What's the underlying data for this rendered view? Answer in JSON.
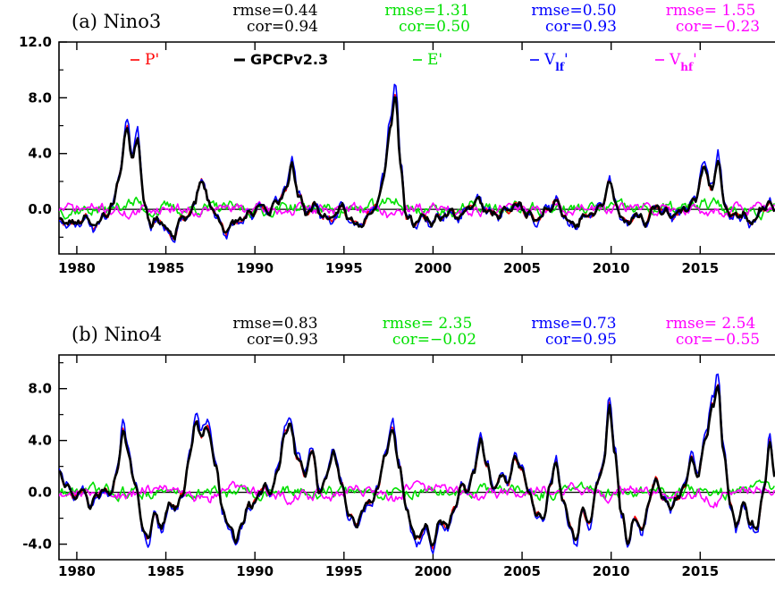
{
  "chart_data": [
    {
      "type": "line",
      "title": "(a) Nino3",
      "xlabel": "",
      "ylabel": "",
      "xlim": [
        1979,
        2019.2
      ],
      "ylim": [
        -3.2,
        12.0
      ],
      "x_ticks": [
        "1980",
        "1985",
        "1990",
        "1995",
        "2000",
        "2005",
        "2010",
        "2015"
      ],
      "y_ticks": [
        "12.0",
        "8.0",
        "4.0",
        "0.0"
      ],
      "stats": [
        {
          "series": "GPCPv2.3",
          "color": "#000000",
          "rmse": "rmse=0.44",
          "cor": "cor=0.94"
        },
        {
          "series": "E'",
          "color": "#00e000",
          "rmse": "rmse=1.31",
          "cor": "cor=0.50"
        },
        {
          "series": "Vlf'",
          "color": "#0000ff",
          "rmse": "rmse=0.50",
          "cor": "cor=0.93"
        },
        {
          "series": "Vhf'",
          "color": "#ff00ff",
          "rmse": "rmse=   1.55",
          "cor": "cor=−0.23"
        }
      ],
      "legend": [
        {
          "name": "P'",
          "color": "#ff0000"
        },
        {
          "name": "GPCPv2.3",
          "color": "#000000"
        },
        {
          "name": "E'",
          "color": "#00e000"
        },
        {
          "name": "Vlf'",
          "color": "#0000ff"
        },
        {
          "name": "Vhf'",
          "color": "#ff00ff"
        }
      ],
      "anchors": [
        [
          1979.0,
          -0.8
        ],
        [
          1979.8,
          -1.0
        ],
        [
          1980.5,
          -0.6
        ],
        [
          1981.0,
          -1.2
        ],
        [
          1981.6,
          -0.4
        ],
        [
          1982.0,
          0.2
        ],
        [
          1982.4,
          2.5
        ],
        [
          1982.8,
          5.8
        ],
        [
          1983.1,
          3.8
        ],
        [
          1983.4,
          5.0
        ],
        [
          1983.8,
          0.5
        ],
        [
          1984.2,
          -1.2
        ],
        [
          1984.6,
          -0.6
        ],
        [
          1985.0,
          -1.4
        ],
        [
          1985.4,
          -2.0
        ],
        [
          1985.8,
          -0.8
        ],
        [
          1986.2,
          -0.5
        ],
        [
          1986.6,
          0.3
        ],
        [
          1987.0,
          2.2
        ],
        [
          1987.4,
          0.5
        ],
        [
          1987.8,
          -0.3
        ],
        [
          1988.3,
          -1.6
        ],
        [
          1988.8,
          -1.0
        ],
        [
          1989.3,
          -0.6
        ],
        [
          1989.8,
          -0.4
        ],
        [
          1990.3,
          0.3
        ],
        [
          1990.7,
          -0.2
        ],
        [
          1991.2,
          0.5
        ],
        [
          1991.8,
          1.5
        ],
        [
          1992.1,
          3.2
        ],
        [
          1992.5,
          0.8
        ],
        [
          1992.9,
          -0.3
        ],
        [
          1993.3,
          0.3
        ],
        [
          1993.8,
          -0.4
        ],
        [
          1994.3,
          -0.8
        ],
        [
          1994.8,
          0.2
        ],
        [
          1995.3,
          -0.6
        ],
        [
          1995.8,
          -1.2
        ],
        [
          1996.4,
          -0.4
        ],
        [
          1996.8,
          0.3
        ],
        [
          1997.2,
          2.0
        ],
        [
          1997.6,
          6.0
        ],
        [
          1997.9,
          8.0
        ],
        [
          1998.2,
          3.0
        ],
        [
          1998.5,
          -0.5
        ],
        [
          1998.9,
          -1.0
        ],
        [
          1999.4,
          -0.6
        ],
        [
          1999.9,
          -0.9
        ],
        [
          2000.5,
          -0.5
        ],
        [
          2001.0,
          -0.2
        ],
        [
          2001.5,
          -0.6
        ],
        [
          2002.0,
          0.2
        ],
        [
          2002.6,
          0.6
        ],
        [
          2003.1,
          -0.2
        ],
        [
          2003.6,
          -0.4
        ],
        [
          2004.2,
          0.0
        ],
        [
          2004.8,
          0.3
        ],
        [
          2005.3,
          -0.3
        ],
        [
          2005.8,
          -0.8
        ],
        [
          2006.4,
          0.0
        ],
        [
          2006.9,
          0.6
        ],
        [
          2007.4,
          -0.5
        ],
        [
          2007.9,
          -1.2
        ],
        [
          2008.4,
          -0.6
        ],
        [
          2009.0,
          -0.3
        ],
        [
          2009.5,
          0.3
        ],
        [
          2009.9,
          2.0
        ],
        [
          2010.3,
          0.2
        ],
        [
          2010.8,
          -1.0
        ],
        [
          2011.4,
          -0.4
        ],
        [
          2011.9,
          -0.9
        ],
        [
          2012.5,
          0.2
        ],
        [
          2013.0,
          -0.2
        ],
        [
          2013.6,
          -0.4
        ],
        [
          2014.2,
          0.1
        ],
        [
          2014.7,
          0.6
        ],
        [
          2015.2,
          3.0
        ],
        [
          2015.6,
          1.5
        ],
        [
          2016.0,
          3.4
        ],
        [
          2016.4,
          0.3
        ],
        [
          2016.8,
          -0.6
        ],
        [
          2017.3,
          -0.3
        ],
        [
          2017.8,
          -1.0
        ],
        [
          2018.4,
          -0.2
        ],
        [
          2018.9,
          0.5
        ],
        [
          2019.2,
          -0.4
        ]
      ]
    },
    {
      "type": "line",
      "title": "(b) Nino4",
      "xlabel": "",
      "ylabel": "",
      "xlim": [
        1979,
        2019.2
      ],
      "ylim": [
        -5.2,
        10.6
      ],
      "x_ticks": [
        "1980",
        "1985",
        "1990",
        "1995",
        "2000",
        "2005",
        "2010",
        "2015"
      ],
      "y_ticks": [
        "8.0",
        "4.0",
        "0.0",
        "-4.0"
      ],
      "stats": [
        {
          "series": "GPCPv2.3",
          "color": "#000000",
          "rmse": "rmse=0.83",
          "cor": "cor=0.93"
        },
        {
          "series": "E'",
          "color": "#00e000",
          "rmse": "rmse=   2.35",
          "cor": "cor=−0.02"
        },
        {
          "series": "Vlf'",
          "color": "#0000ff",
          "rmse": "rmse=0.73",
          "cor": "cor=0.95"
        },
        {
          "series": "Vhf'",
          "color": "#ff00ff",
          "rmse": "rmse=   2.54",
          "cor": "cor=−0.55"
        }
      ],
      "anchors": [
        [
          1979.0,
          1.6
        ],
        [
          1979.4,
          0.6
        ],
        [
          1979.8,
          -0.4
        ],
        [
          1980.3,
          0.2
        ],
        [
          1980.7,
          -0.9
        ],
        [
          1981.2,
          -0.3
        ],
        [
          1981.6,
          0.3
        ],
        [
          1981.9,
          -0.4
        ],
        [
          1982.3,
          2.0
        ],
        [
          1982.6,
          4.8
        ],
        [
          1982.9,
          3.0
        ],
        [
          1983.3,
          0.5
        ],
        [
          1983.7,
          -2.6
        ],
        [
          1984.0,
          -3.6
        ],
        [
          1984.4,
          -1.5
        ],
        [
          1984.8,
          -2.8
        ],
        [
          1985.2,
          -0.8
        ],
        [
          1985.6,
          -1.2
        ],
        [
          1985.9,
          -0.3
        ],
        [
          1986.3,
          2.5
        ],
        [
          1986.7,
          5.5
        ],
        [
          1987.0,
          4.4
        ],
        [
          1987.4,
          4.8
        ],
        [
          1987.8,
          2.0
        ],
        [
          1988.2,
          -1.5
        ],
        [
          1988.6,
          -2.7
        ],
        [
          1988.9,
          -3.7
        ],
        [
          1989.3,
          -2.3
        ],
        [
          1989.7,
          -1.0
        ],
        [
          1990.1,
          -0.5
        ],
        [
          1990.6,
          0.6
        ],
        [
          1990.9,
          -0.3
        ],
        [
          1991.3,
          2.0
        ],
        [
          1991.7,
          4.5
        ],
        [
          1992.0,
          5.2
        ],
        [
          1992.4,
          2.5
        ],
        [
          1992.8,
          1.5
        ],
        [
          1993.2,
          3.2
        ],
        [
          1993.6,
          0.2
        ],
        [
          1994.0,
          1.0
        ],
        [
          1994.4,
          3.2
        ],
        [
          1994.9,
          0.5
        ],
        [
          1995.3,
          -1.8
        ],
        [
          1995.7,
          -2.6
        ],
        [
          1996.1,
          -1.2
        ],
        [
          1996.5,
          -0.8
        ],
        [
          1996.9,
          0.3
        ],
        [
          1997.3,
          2.8
        ],
        [
          1997.7,
          4.8
        ],
        [
          1998.1,
          2.2
        ],
        [
          1998.5,
          -1.2
        ],
        [
          1998.8,
          -2.8
        ],
        [
          1999.2,
          -3.6
        ],
        [
          1999.6,
          -2.5
        ],
        [
          2000.0,
          -4.2
        ],
        [
          2000.4,
          -2.0
        ],
        [
          2000.8,
          -2.8
        ],
        [
          2001.2,
          -1.2
        ],
        [
          2001.6,
          0.5
        ],
        [
          2001.9,
          0.2
        ],
        [
          2002.3,
          1.5
        ],
        [
          2002.7,
          4.2
        ],
        [
          2003.0,
          2.0
        ],
        [
          2003.4,
          0.3
        ],
        [
          2003.8,
          1.2
        ],
        [
          2004.2,
          0.8
        ],
        [
          2004.6,
          2.5
        ],
        [
          2005.0,
          1.8
        ],
        [
          2005.4,
          -0.2
        ],
        [
          2005.8,
          -1.5
        ],
        [
          2006.2,
          -2.2
        ],
        [
          2006.6,
          0.8
        ],
        [
          2006.9,
          2.2
        ],
        [
          2007.3,
          -0.5
        ],
        [
          2007.7,
          -2.6
        ],
        [
          2008.0,
          -3.6
        ],
        [
          2008.4,
          -1.5
        ],
        [
          2008.8,
          -2.4
        ],
        [
          2009.2,
          0.5
        ],
        [
          2009.6,
          2.5
        ],
        [
          2009.9,
          6.6
        ],
        [
          2010.2,
          3.2
        ],
        [
          2010.6,
          -1.8
        ],
        [
          2010.9,
          -3.8
        ],
        [
          2011.3,
          -2.0
        ],
        [
          2011.7,
          -2.8
        ],
        [
          2012.1,
          -1.0
        ],
        [
          2012.5,
          1.2
        ],
        [
          2012.9,
          -0.5
        ],
        [
          2013.3,
          -1.0
        ],
        [
          2013.7,
          -0.6
        ],
        [
          2014.1,
          0.5
        ],
        [
          2014.5,
          2.5
        ],
        [
          2014.9,
          1.5
        ],
        [
          2015.3,
          4.0
        ],
        [
          2015.7,
          6.8
        ],
        [
          2016.0,
          8.0
        ],
        [
          2016.3,
          3.5
        ],
        [
          2016.7,
          -1.0
        ],
        [
          2017.0,
          -2.6
        ],
        [
          2017.4,
          -1.0
        ],
        [
          2017.8,
          -2.2
        ],
        [
          2018.2,
          -2.8
        ],
        [
          2018.6,
          0.5
        ],
        [
          2018.9,
          3.8
        ],
        [
          2019.2,
          1.0
        ]
      ]
    }
  ]
}
